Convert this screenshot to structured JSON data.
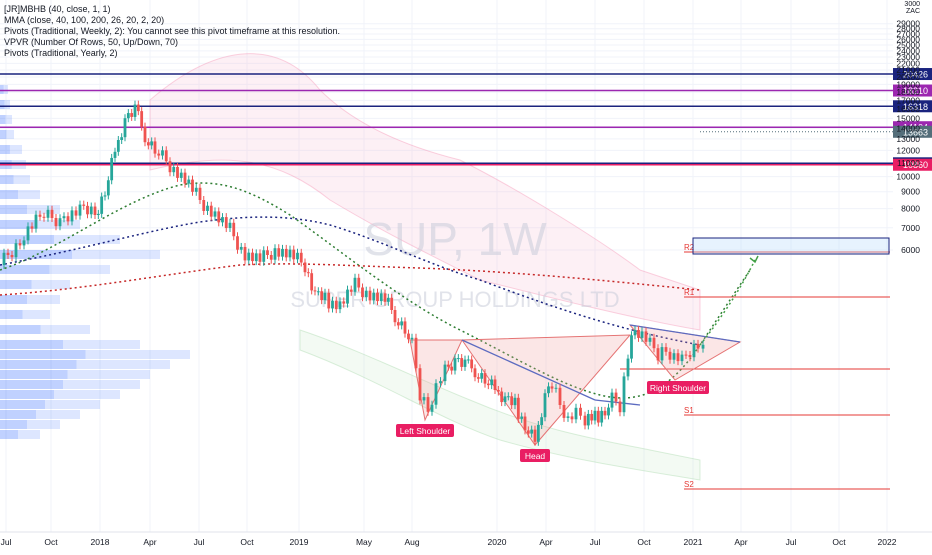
{
  "chart_data": {
    "type": "candlestick",
    "title": "",
    "currency": "ZAC",
    "legend": {
      "lines": [
        "[JR]MBHB (40, close, 1, 1)",
        "MMA (close, 40, 100, 200, 26, 20, 2, 20)",
        "Pivots (Traditional, Weekly, 2): You cannot see this pivot timeframe at this resolution.",
        "VPVR (Number Of Rows, 50, Up/Down, 70)",
        "Pivots (Traditional, Yearly, 2)"
      ],
      "placement": "top-left"
    },
    "watermark": {
      "symbol": "SUP, 1W",
      "name": "SUPER GROUP HOLDINGS LTD"
    },
    "y_axis": {
      "unit": "ZAC",
      "scale": "log",
      "range": [
        5600,
        30500
      ],
      "ticks": [
        6000,
        7000,
        8000,
        9000,
        10000,
        11000,
        12000,
        13000,
        14000,
        15000,
        16000,
        17000,
        18000,
        19000,
        20000,
        21000,
        22000,
        23000,
        24000,
        25000,
        26000,
        27000,
        28000,
        29000
      ]
    },
    "x_axis": {
      "ticks": [
        "Jul",
        "Oct",
        "2018",
        "Apr",
        "Jul",
        "Oct",
        "2019",
        "May",
        "Aug",
        "2020",
        "Apr",
        "Jul",
        "Oct",
        "2021",
        "Apr",
        "Jul",
        "Oct",
        "2022"
      ]
    },
    "horizontal_levels": [
      {
        "value": 20426,
        "label": "20426",
        "color": "#1a237e"
      },
      {
        "value": 18210,
        "label": "18210",
        "color": "#9c27b0"
      },
      {
        "value": 16318,
        "label": "16318",
        "color": "#1a237e"
      },
      {
        "value": 14104,
        "label": "14104",
        "color": "#9c27b0"
      },
      {
        "value": 10970,
        "label": "10970",
        "color": "#1a237e"
      },
      {
        "value": 10860,
        "label": "10860",
        "color": "#e91e63"
      }
    ],
    "last_price": {
      "value": 13663,
      "label": "13663",
      "color": "#546e7a"
    },
    "pivot_labels": [
      "R2",
      "R1",
      "S1",
      "S2"
    ],
    "annotations": [
      "Left Shoulder",
      "Head",
      "Right Shoulder"
    ],
    "axis_prefix": "3000"
  }
}
